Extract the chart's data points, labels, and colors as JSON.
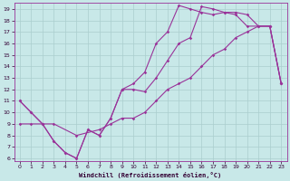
{
  "xlabel": "Windchill (Refroidissement éolien,°C)",
  "bg_color": "#c8e8e8",
  "line_color": "#993399",
  "grid_color": "#b0d8d8",
  "xlim": [
    -0.5,
    23.5
  ],
  "ylim": [
    5.8,
    19.5
  ],
  "xticks": [
    0,
    1,
    2,
    3,
    4,
    5,
    6,
    7,
    8,
    9,
    10,
    11,
    12,
    13,
    14,
    15,
    16,
    17,
    18,
    19,
    20,
    21,
    22,
    23
  ],
  "yticks": [
    6,
    7,
    8,
    9,
    10,
    11,
    12,
    13,
    14,
    15,
    16,
    17,
    18,
    19
  ],
  "line1_x": [
    0,
    1,
    2,
    3,
    4,
    5,
    6,
    7,
    8,
    9,
    10,
    11,
    12,
    13,
    14,
    15,
    16,
    17,
    18,
    19,
    20,
    21,
    22,
    23
  ],
  "line1_y": [
    11,
    10,
    9,
    7.5,
    6.5,
    6,
    8.5,
    8,
    9.5,
    12,
    12,
    11.8,
    13,
    14.5,
    16,
    16.5,
    19.2,
    19.0,
    18.7,
    18.7,
    18.5,
    17.5,
    17.5,
    12.5
  ],
  "line2_x": [
    0,
    1,
    2,
    3,
    4,
    5,
    6,
    7,
    8,
    9,
    10,
    11,
    12,
    13,
    14,
    15,
    16,
    17,
    18,
    19,
    20,
    21,
    22,
    23
  ],
  "line2_y": [
    11,
    10,
    9,
    7.5,
    6.5,
    6,
    8.5,
    8,
    9.5,
    12,
    12.5,
    13.5,
    16,
    17,
    19.3,
    19.0,
    18.7,
    18.5,
    18.7,
    18.5,
    17.5,
    17.5,
    17.5,
    12.5
  ],
  "line3_x": [
    0,
    1,
    2,
    3,
    5,
    7,
    8,
    9,
    10,
    11,
    12,
    13,
    14,
    15,
    16,
    17,
    18,
    19,
    20,
    21,
    22,
    23
  ],
  "line3_y": [
    9,
    9,
    9,
    9,
    8,
    8.5,
    9,
    9.5,
    9.5,
    10,
    11,
    12,
    12.5,
    13,
    14,
    15,
    15.5,
    16.5,
    17,
    17.5,
    17.5,
    12.5
  ]
}
